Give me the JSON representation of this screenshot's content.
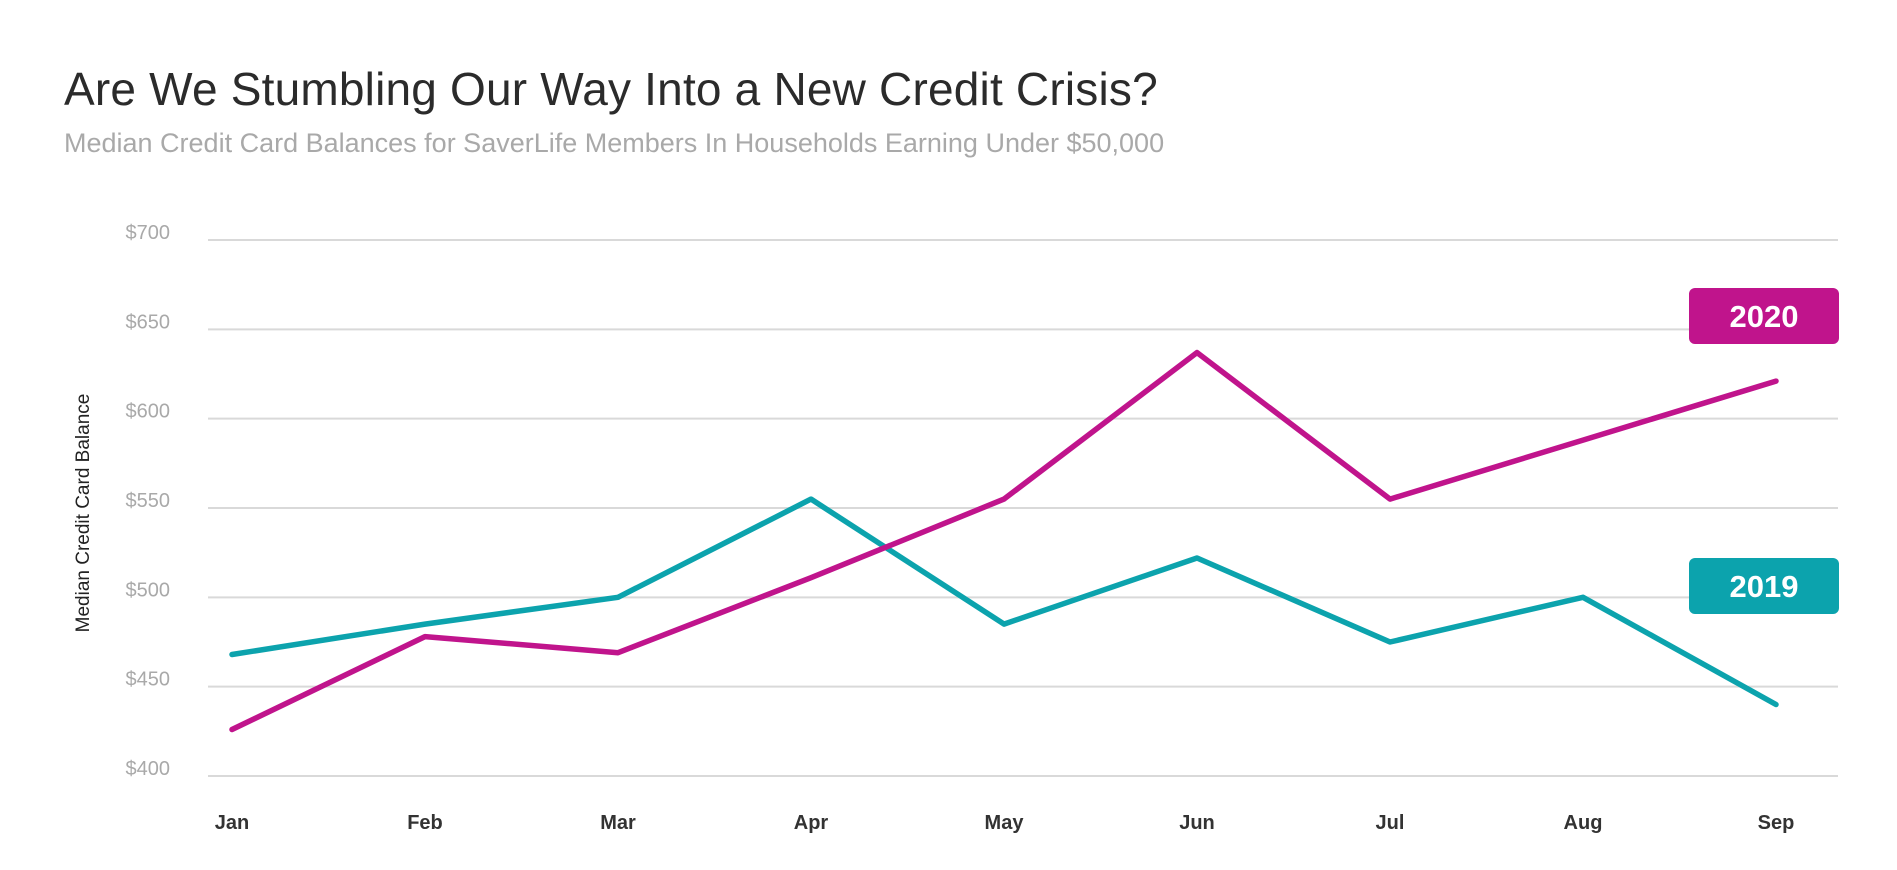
{
  "header": {
    "title": "Are We Stumbling Our Way Into a New Credit Crisis?",
    "subtitle": "Median Credit Card Balances for SaverLife Members In Households Earning Under $50,000"
  },
  "chart_data": {
    "type": "line",
    "title": "Are We Stumbling Our Way Into a New Credit Crisis?",
    "subtitle": "Median Credit Card Balances for SaverLife Members In Households Earning Under $50,000",
    "xlabel": "",
    "ylabel": "Median Credit Card Balance",
    "categories": [
      "Jan",
      "Feb",
      "Mar",
      "Apr",
      "May",
      "Jun",
      "Jul",
      "Aug",
      "Sep"
    ],
    "ylim": [
      400,
      700
    ],
    "yticks": [
      400,
      450,
      500,
      550,
      600,
      650,
      700
    ],
    "ytick_labels": [
      "$400",
      "$450",
      "$500",
      "$550",
      "$600",
      "$650",
      "$700"
    ],
    "grid": true,
    "legend": "right, boxed labels",
    "series": [
      {
        "name": "2020",
        "color": "#c0148c",
        "values": [
          426,
          478,
          469,
          511,
          555,
          637,
          555,
          588,
          621
        ]
      },
      {
        "name": "2019",
        "color": "#0ca3ad",
        "values": [
          468,
          485,
          500,
          555,
          485,
          522,
          475,
          500,
          440
        ]
      }
    ]
  }
}
